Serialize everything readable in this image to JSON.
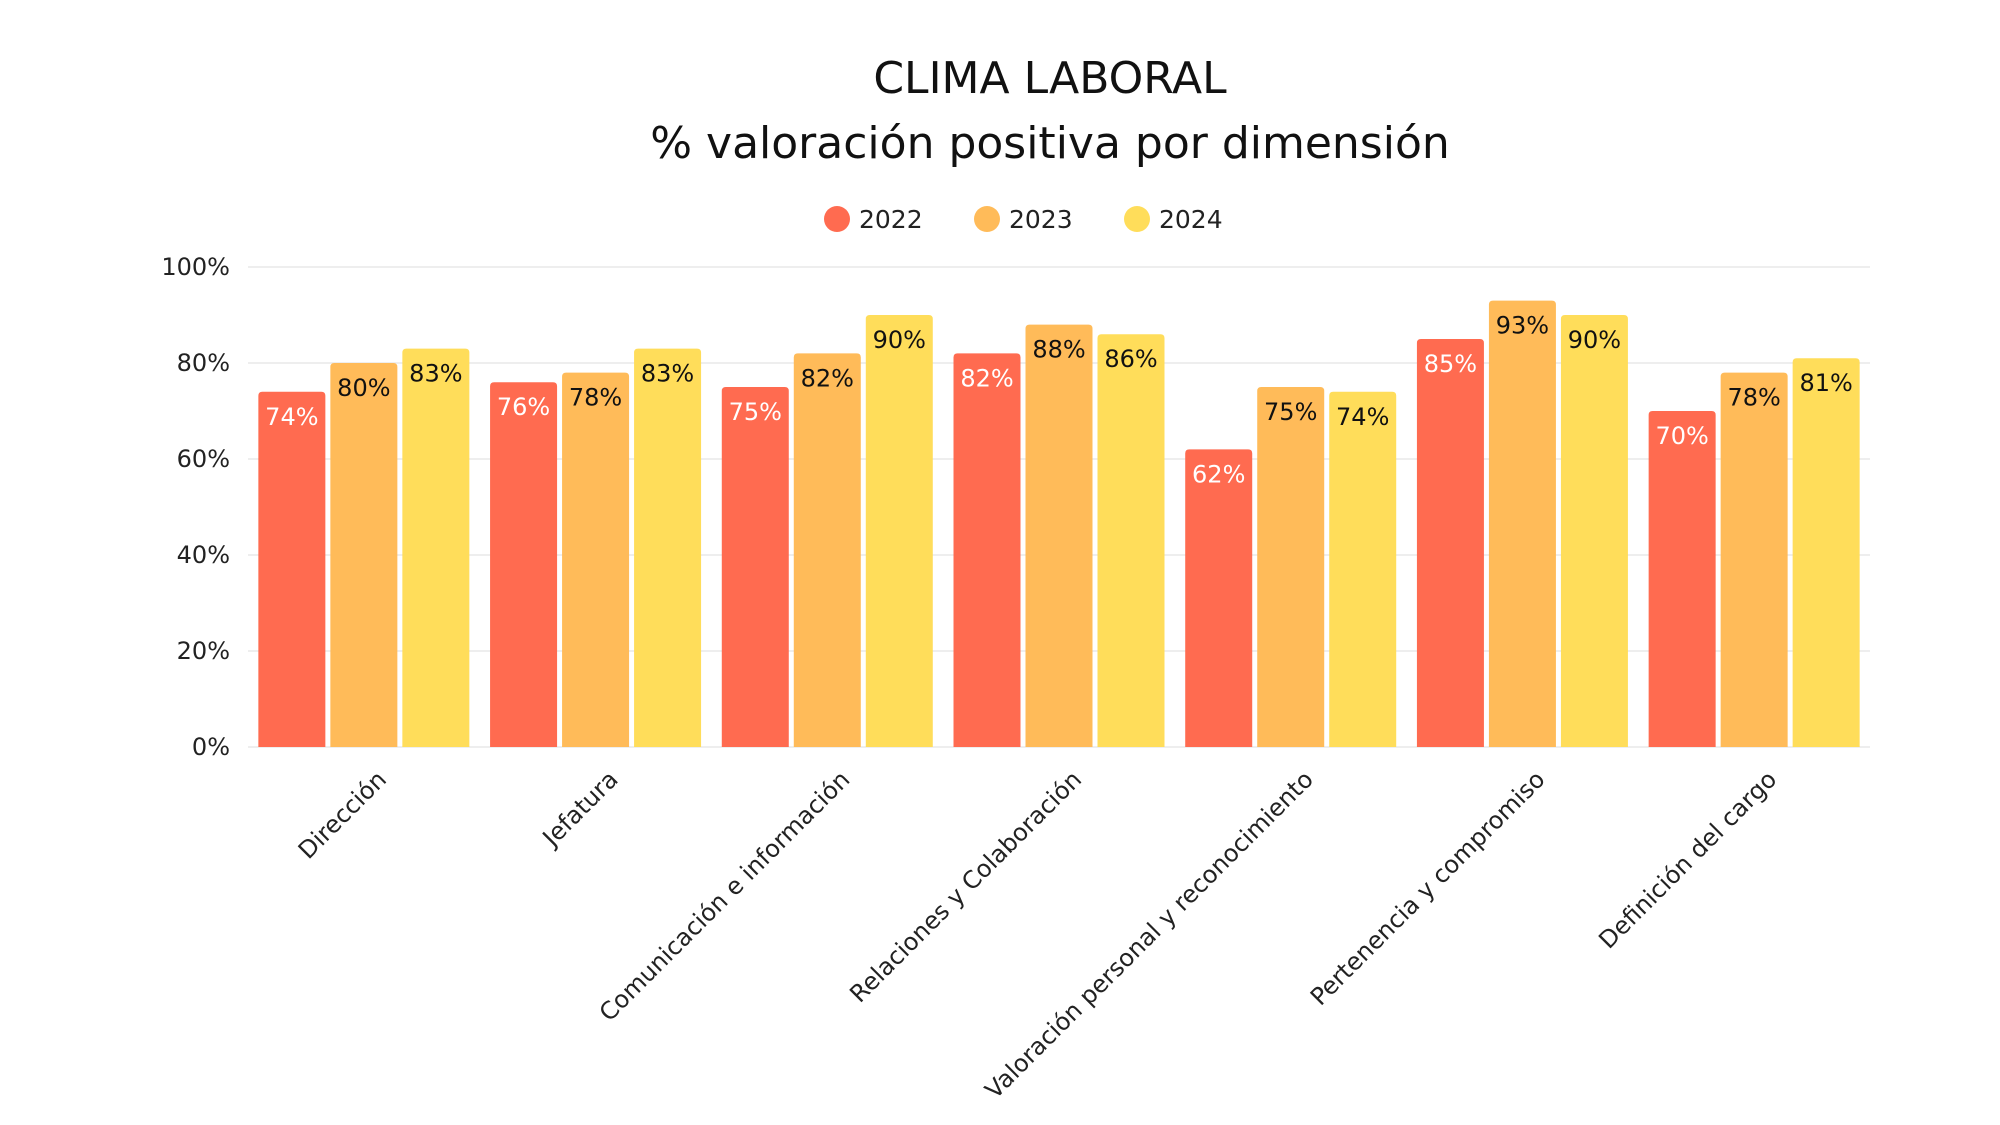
{
  "chart_data": {
    "type": "bar",
    "title": "CLIMA LABORAL",
    "subtitle": "% valoración positiva por dimensión",
    "xlabel": "",
    "ylabel": "",
    "ylim": [
      0,
      100
    ],
    "yticks": [
      0,
      20,
      40,
      60,
      80,
      100
    ],
    "ytick_labels": [
      "0%",
      "20%",
      "40%",
      "60%",
      "80%",
      "100%"
    ],
    "grid": true,
    "legend_position": "top-center",
    "categories": [
      "Dirección",
      "Jefatura",
      "Comunicación e información",
      "Relaciones y Colaboración",
      "Valoración personal y reconocimiento",
      "Pertenencia y compromiso",
      "Definición del cargo"
    ],
    "series": [
      {
        "name": "2022",
        "color": "#ff6b50",
        "label_color": "#ffffff",
        "values": [
          74,
          76,
          75,
          82,
          62,
          85,
          70
        ],
        "labels": [
          "74%",
          "76%",
          "75%",
          "82%",
          "62%",
          "85%",
          "70%"
        ]
      },
      {
        "name": "2023",
        "color": "#ffbb59",
        "label_color": "#111111",
        "values": [
          80,
          78,
          82,
          88,
          75,
          93,
          78
        ],
        "labels": [
          "80%",
          "78%",
          "82%",
          "88%",
          "75%",
          "93%",
          "78%"
        ]
      },
      {
        "name": "2024",
        "color": "#ffdd5a",
        "label_color": "#111111",
        "values": [
          83,
          83,
          90,
          86,
          74,
          90,
          81
        ],
        "labels": [
          "83%",
          "83%",
          "90%",
          "86%",
          "74%",
          "90%",
          "81%"
        ]
      }
    ]
  }
}
